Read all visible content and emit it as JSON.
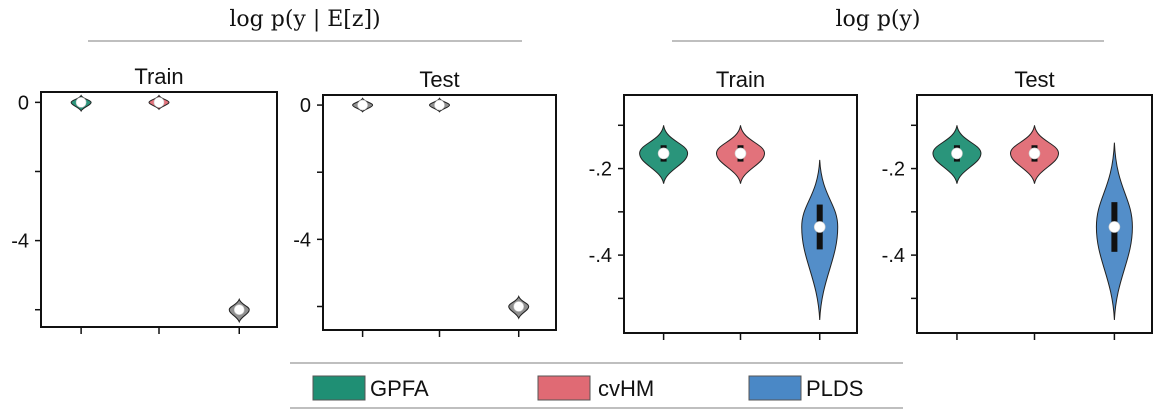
{
  "groups": [
    {
      "title": "log p(y | E[z])"
    },
    {
      "title": "log p(y)"
    }
  ],
  "legend": [
    {
      "name": "GPFA",
      "color": "#1f8f74"
    },
    {
      "name": "cvHM",
      "color": "#e06a74"
    },
    {
      "name": "PLDS",
      "color": "#4a88c6"
    }
  ],
  "chart_data": [
    {
      "type": "violin",
      "group": "log p(y | E[z])",
      "title": "Train",
      "ylim": [
        -6.5,
        0.3
      ],
      "yticks": [
        {
          "value": 0,
          "label": "0"
        },
        {
          "value": -2,
          "label": ""
        },
        {
          "value": -4,
          "label": "-4"
        },
        {
          "value": -6,
          "label": ""
        }
      ],
      "series": [
        {
          "name": "GPFA",
          "median": 0.0,
          "min": -0.25,
          "max": 0.2,
          "color": "#1f8f74"
        },
        {
          "name": "cvHM",
          "median": 0.0,
          "min": -0.2,
          "max": 0.2,
          "color": "#e06a74"
        },
        {
          "name": "PLDS",
          "median": -6.0,
          "min": -6.35,
          "max": -5.7,
          "color": "#8a8a8a"
        }
      ]
    },
    {
      "type": "violin",
      "group": "log p(y | E[z])",
      "title": "Test",
      "ylim": [
        -6.7,
        0.3
      ],
      "yticks": [
        {
          "value": 0,
          "label": "0"
        },
        {
          "value": -2,
          "label": ""
        },
        {
          "value": -4,
          "label": "-4"
        },
        {
          "value": -6,
          "label": ""
        }
      ],
      "series": [
        {
          "name": "GPFA",
          "median": 0.0,
          "min": -0.2,
          "max": 0.2,
          "color": "#8a8a8a"
        },
        {
          "name": "cvHM",
          "median": 0.0,
          "min": -0.2,
          "max": 0.2,
          "color": "#8a8a8a"
        },
        {
          "name": "PLDS",
          "median": -6.0,
          "min": -6.35,
          "max": -5.7,
          "color": "#8a8a8a"
        }
      ]
    },
    {
      "type": "violin",
      "group": "log p(y)",
      "title": "Train",
      "ylim": [
        -0.58,
        -0.03
      ],
      "yticks": [
        {
          "value": -0.1,
          "label": ""
        },
        {
          "value": -0.2,
          "label": "-.2"
        },
        {
          "value": -0.3,
          "label": ""
        },
        {
          "value": -0.4,
          "label": "-.4"
        },
        {
          "value": -0.5,
          "label": ""
        }
      ],
      "series": [
        {
          "name": "GPFA",
          "median": -0.165,
          "min": -0.235,
          "max": -0.1,
          "color": "#1f8f74"
        },
        {
          "name": "cvHM",
          "median": -0.165,
          "min": -0.235,
          "max": -0.1,
          "color": "#e06a74"
        },
        {
          "name": "PLDS",
          "median": -0.335,
          "min": -0.55,
          "max": -0.18,
          "color": "#4a88c6"
        }
      ]
    },
    {
      "type": "violin",
      "group": "log p(y)",
      "title": "Test",
      "ylim": [
        -0.58,
        -0.03
      ],
      "yticks": [
        {
          "value": -0.1,
          "label": ""
        },
        {
          "value": -0.2,
          "label": "-.2"
        },
        {
          "value": -0.3,
          "label": ""
        },
        {
          "value": -0.4,
          "label": "-.4"
        },
        {
          "value": -0.5,
          "label": ""
        }
      ],
      "series": [
        {
          "name": "GPFA",
          "median": -0.165,
          "min": -0.235,
          "max": -0.1,
          "color": "#1f8f74"
        },
        {
          "name": "cvHM",
          "median": -0.165,
          "min": -0.235,
          "max": -0.1,
          "color": "#e06a74"
        },
        {
          "name": "PLDS",
          "median": -0.335,
          "min": -0.55,
          "max": -0.14,
          "color": "#4a88c6"
        }
      ]
    }
  ]
}
